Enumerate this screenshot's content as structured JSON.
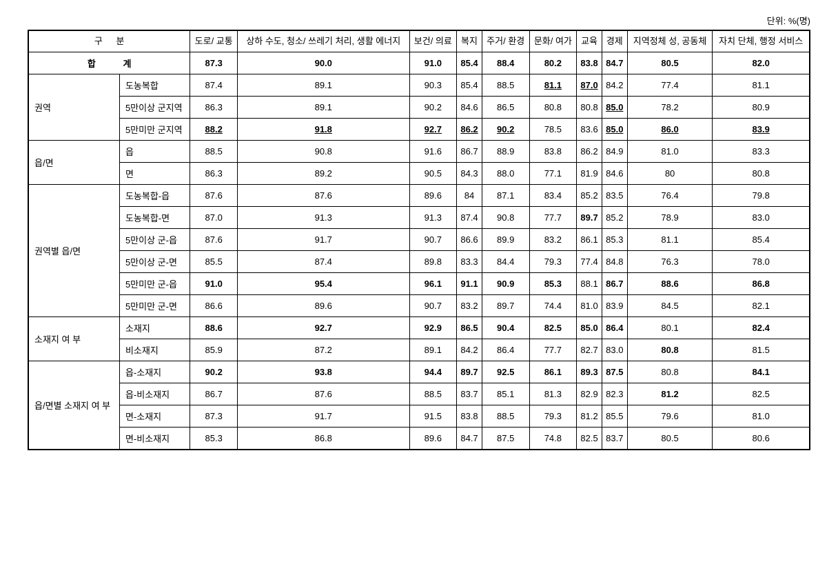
{
  "unit_label": "단위: %(명)",
  "header": {
    "category": "구    분",
    "columns": [
      "도로/\n교통",
      "상하\n수도,\n청소/\n쓰레기\n처리,\n생활\n에너지",
      "보건/\n의료",
      "복지",
      "주거/\n환경",
      "문화/\n여가",
      "교육",
      "경제",
      "지역정체\n성,\n공동체",
      "자치\n단체,\n행정\n서비스"
    ]
  },
  "total": {
    "label": "합    계",
    "values": [
      "87.3",
      "90.0",
      "91.0",
      "85.4",
      "88.4",
      "80.2",
      "83.8",
      "84.7",
      "80.5",
      "82.0"
    ]
  },
  "groups": [
    {
      "label": "권역",
      "rows": [
        {
          "label": "도농복합",
          "cells": [
            {
              "v": "87.4"
            },
            {
              "v": "89.1"
            },
            {
              "v": "90.3"
            },
            {
              "v": "85.4"
            },
            {
              "v": "88.5"
            },
            {
              "v": "81.1",
              "s": "bu"
            },
            {
              "v": "87.0",
              "s": "bu"
            },
            {
              "v": "84.2"
            },
            {
              "v": "77.4"
            },
            {
              "v": "81.1"
            }
          ]
        },
        {
          "label": "5만이상 군지역",
          "cells": [
            {
              "v": "86.3"
            },
            {
              "v": "89.1"
            },
            {
              "v": "90.2"
            },
            {
              "v": "84.6"
            },
            {
              "v": "86.5"
            },
            {
              "v": "80.8"
            },
            {
              "v": "80.8"
            },
            {
              "v": "85.0",
              "s": "bu"
            },
            {
              "v": "78.2"
            },
            {
              "v": "80.9"
            }
          ]
        },
        {
          "label": "5만미만 군지역",
          "cells": [
            {
              "v": "88.2",
              "s": "bu"
            },
            {
              "v": "91.8",
              "s": "bu"
            },
            {
              "v": "92.7",
              "s": "bu"
            },
            {
              "v": "86.2",
              "s": "bu"
            },
            {
              "v": "90.2",
              "s": "bu"
            },
            {
              "v": "78.5"
            },
            {
              "v": "83.6"
            },
            {
              "v": "85.0",
              "s": "bu"
            },
            {
              "v": "86.0",
              "s": "bu"
            },
            {
              "v": "83.9",
              "s": "bu"
            }
          ]
        }
      ]
    },
    {
      "label": "읍/면",
      "rows": [
        {
          "label": "읍",
          "cells": [
            {
              "v": "88.5"
            },
            {
              "v": "90.8"
            },
            {
              "v": "91.6"
            },
            {
              "v": "86.7"
            },
            {
              "v": "88.9"
            },
            {
              "v": "83.8"
            },
            {
              "v": "86.2"
            },
            {
              "v": "84.9"
            },
            {
              "v": "81.0"
            },
            {
              "v": "83.3"
            }
          ]
        },
        {
          "label": "면",
          "cells": [
            {
              "v": "86.3"
            },
            {
              "v": "89.2"
            },
            {
              "v": "90.5"
            },
            {
              "v": "84.3"
            },
            {
              "v": "88.0"
            },
            {
              "v": "77.1"
            },
            {
              "v": "81.9"
            },
            {
              "v": "84.6"
            },
            {
              "v": "80"
            },
            {
              "v": "80.8"
            }
          ]
        }
      ]
    },
    {
      "label": "권역별\n읍/면",
      "rows": [
        {
          "label": "도농복합-읍",
          "cells": [
            {
              "v": "87.6"
            },
            {
              "v": "87.6"
            },
            {
              "v": "89.6"
            },
            {
              "v": "84"
            },
            {
              "v": "87.1"
            },
            {
              "v": "83.4"
            },
            {
              "v": "85.2"
            },
            {
              "v": "83.5"
            },
            {
              "v": "76.4"
            },
            {
              "v": "79.8"
            }
          ]
        },
        {
          "label": "도농복합-면",
          "cells": [
            {
              "v": "87.0"
            },
            {
              "v": "91.3"
            },
            {
              "v": "91.3"
            },
            {
              "v": "87.4"
            },
            {
              "v": "90.8"
            },
            {
              "v": "77.7"
            },
            {
              "v": "89.7",
              "s": "b"
            },
            {
              "v": "85.2"
            },
            {
              "v": "78.9"
            },
            {
              "v": "83.0"
            }
          ]
        },
        {
          "label": "5만이상 군-읍",
          "cells": [
            {
              "v": "87.6"
            },
            {
              "v": "91.7"
            },
            {
              "v": "90.7"
            },
            {
              "v": "86.6"
            },
            {
              "v": "89.9"
            },
            {
              "v": "83.2"
            },
            {
              "v": "86.1"
            },
            {
              "v": "85.3"
            },
            {
              "v": "81.1"
            },
            {
              "v": "85.4"
            }
          ]
        },
        {
          "label": "5만이상 군-면",
          "cells": [
            {
              "v": "85.5"
            },
            {
              "v": "87.4"
            },
            {
              "v": "89.8"
            },
            {
              "v": "83.3"
            },
            {
              "v": "84.4"
            },
            {
              "v": "79.3"
            },
            {
              "v": "77.4"
            },
            {
              "v": "84.8"
            },
            {
              "v": "76.3"
            },
            {
              "v": "78.0"
            }
          ]
        },
        {
          "label": "5만미만 군-읍",
          "cells": [
            {
              "v": "91.0",
              "s": "b"
            },
            {
              "v": "95.4",
              "s": "b"
            },
            {
              "v": "96.1",
              "s": "b"
            },
            {
              "v": "91.1",
              "s": "b"
            },
            {
              "v": "90.9",
              "s": "b"
            },
            {
              "v": "85.3",
              "s": "b"
            },
            {
              "v": "88.1"
            },
            {
              "v": "86.7",
              "s": "b"
            },
            {
              "v": "88.6",
              "s": "b"
            },
            {
              "v": "86.8",
              "s": "b"
            }
          ]
        },
        {
          "label": "5만미만 군-면",
          "cells": [
            {
              "v": "86.6"
            },
            {
              "v": "89.6"
            },
            {
              "v": "90.7"
            },
            {
              "v": "83.2"
            },
            {
              "v": "89.7"
            },
            {
              "v": "74.4"
            },
            {
              "v": "81.0"
            },
            {
              "v": "83.9"
            },
            {
              "v": "84.5"
            },
            {
              "v": "82.1"
            }
          ]
        }
      ]
    },
    {
      "label": "소재지 여\n부",
      "rows": [
        {
          "label": "소재지",
          "cells": [
            {
              "v": "88.6",
              "s": "b"
            },
            {
              "v": "92.7",
              "s": "b"
            },
            {
              "v": "92.9",
              "s": "b"
            },
            {
              "v": "86.5",
              "s": "b"
            },
            {
              "v": "90.4",
              "s": "b"
            },
            {
              "v": "82.5",
              "s": "b"
            },
            {
              "v": "85.0",
              "s": "b"
            },
            {
              "v": "86.4",
              "s": "b"
            },
            {
              "v": "80.1"
            },
            {
              "v": "82.4",
              "s": "b"
            }
          ]
        },
        {
          "label": "비소재지",
          "cells": [
            {
              "v": "85.9"
            },
            {
              "v": "87.2"
            },
            {
              "v": "89.1"
            },
            {
              "v": "84.2"
            },
            {
              "v": "86.4"
            },
            {
              "v": "77.7"
            },
            {
              "v": "82.7"
            },
            {
              "v": "83.0"
            },
            {
              "v": "80.8",
              "s": "b"
            },
            {
              "v": "81.5"
            }
          ]
        }
      ]
    },
    {
      "label": "읍/면별\n소재지 여\n부",
      "rows": [
        {
          "label": "읍-소재지",
          "cells": [
            {
              "v": "90.2",
              "s": "b"
            },
            {
              "v": "93.8",
              "s": "b"
            },
            {
              "v": "94.4",
              "s": "b"
            },
            {
              "v": "89.7",
              "s": "b"
            },
            {
              "v": "92.5",
              "s": "b"
            },
            {
              "v": "86.1",
              "s": "b"
            },
            {
              "v": "89.3",
              "s": "b"
            },
            {
              "v": "87.5",
              "s": "b"
            },
            {
              "v": "80.8"
            },
            {
              "v": "84.1",
              "s": "b"
            }
          ]
        },
        {
          "label": "읍-비소재지",
          "cells": [
            {
              "v": "86.7"
            },
            {
              "v": "87.6"
            },
            {
              "v": "88.5"
            },
            {
              "v": "83.7"
            },
            {
              "v": "85.1"
            },
            {
              "v": "81.3"
            },
            {
              "v": "82.9"
            },
            {
              "v": "82.3"
            },
            {
              "v": "81.2",
              "s": "b"
            },
            {
              "v": "82.5"
            }
          ]
        },
        {
          "label": "면-소재지",
          "cells": [
            {
              "v": "87.3"
            },
            {
              "v": "91.7"
            },
            {
              "v": "91.5"
            },
            {
              "v": "83.8"
            },
            {
              "v": "88.5"
            },
            {
              "v": "79.3"
            },
            {
              "v": "81.2"
            },
            {
              "v": "85.5"
            },
            {
              "v": "79.6"
            },
            {
              "v": "81.0"
            }
          ]
        },
        {
          "label": "면-비소재지",
          "cells": [
            {
              "v": "85.3"
            },
            {
              "v": "86.8"
            },
            {
              "v": "89.6"
            },
            {
              "v": "84.7"
            },
            {
              "v": "87.5"
            },
            {
              "v": "74.8"
            },
            {
              "v": "82.5"
            },
            {
              "v": "83.7"
            },
            {
              "v": "80.5"
            },
            {
              "v": "80.6"
            }
          ]
        }
      ]
    }
  ]
}
